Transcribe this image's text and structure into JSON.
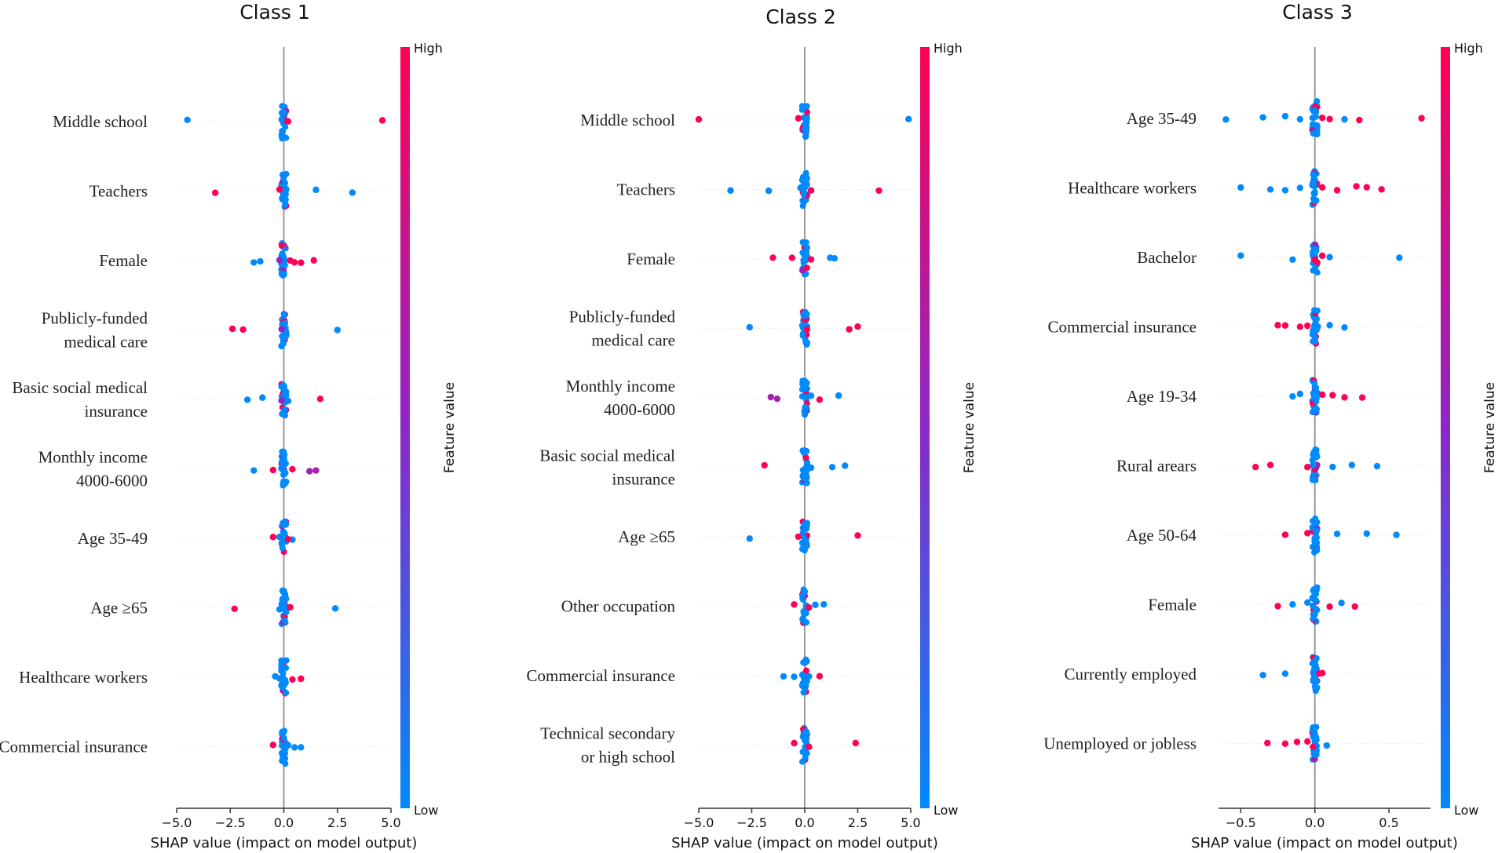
{
  "chart_data": [
    {
      "type": "scatter",
      "title": "Class  1",
      "xlabel": "SHAP value (impact on model output)",
      "xlim": [
        -5.0,
        5.0
      ],
      "xticks": [
        -5.0,
        -2.5,
        0.0,
        2.5,
        5.0
      ],
      "xtick_labels": [
        "−5.0",
        "−2.5",
        "0.0",
        "2.5",
        "5.0"
      ],
      "colorbar": {
        "high": "High",
        "low": "Low",
        "label": "Feature value"
      },
      "features": [
        {
          "label": [
            "Middle school"
          ],
          "points": [
            [
              -4.5,
              0.0
            ],
            [
              4.6,
              1.0
            ],
            [
              0.2,
              1.0
            ],
            [
              0.0,
              1.0
            ],
            [
              -0.1,
              0.0
            ]
          ]
        },
        {
          "label": [
            "Teachers"
          ],
          "points": [
            [
              -3.2,
              1.0
            ],
            [
              1.5,
              0.0
            ],
            [
              3.2,
              0.0
            ],
            [
              -0.2,
              1.0
            ],
            [
              0.1,
              0.0
            ]
          ]
        },
        {
          "label": [
            "Female"
          ],
          "points": [
            [
              -1.4,
              0.0
            ],
            [
              -1.1,
              0.0
            ],
            [
              1.4,
              1.0
            ],
            [
              0.8,
              1.0
            ],
            [
              0.5,
              1.0
            ],
            [
              -0.2,
              0.5
            ],
            [
              0.3,
              1.0
            ]
          ]
        },
        {
          "label": [
            "Publicly-funded",
            "medical care"
          ],
          "points": [
            [
              -2.4,
              1.0
            ],
            [
              -1.9,
              1.0
            ],
            [
              2.5,
              0.0
            ],
            [
              -0.1,
              0.5
            ]
          ]
        },
        {
          "label": [
            "Basic social medical",
            "insurance"
          ],
          "points": [
            [
              -1.7,
              0.0
            ],
            [
              -1.0,
              0.0
            ],
            [
              1.7,
              1.0
            ],
            [
              0.2,
              0.0
            ],
            [
              -0.1,
              0.5
            ]
          ]
        },
        {
          "label": [
            "Monthly income",
            "4000-6000"
          ],
          "points": [
            [
              -1.4,
              0.0
            ],
            [
              1.2,
              0.6
            ],
            [
              1.5,
              0.6
            ],
            [
              -0.5,
              1.0
            ],
            [
              0.4,
              1.0
            ]
          ]
        },
        {
          "label": [
            "Age 35-49"
          ],
          "points": [
            [
              -0.5,
              1.0
            ],
            [
              0.4,
              0.0
            ],
            [
              0.2,
              1.0
            ],
            [
              -0.2,
              0.0
            ]
          ]
        },
        {
          "label": [
            "Age ≥65"
          ],
          "points": [
            [
              -2.3,
              1.0
            ],
            [
              2.4,
              0.0
            ],
            [
              0.3,
              1.0
            ],
            [
              -0.2,
              0.0
            ]
          ]
        },
        {
          "label": [
            "Healthcare workers"
          ],
          "points": [
            [
              -0.4,
              0.0
            ],
            [
              0.8,
              1.0
            ],
            [
              0.4,
              1.0
            ],
            [
              -0.2,
              0.0
            ]
          ]
        },
        {
          "label": [
            "Commercial insurance"
          ],
          "points": [
            [
              -0.5,
              1.0
            ],
            [
              0.8,
              0.0
            ],
            [
              0.5,
              0.0
            ],
            [
              0.2,
              0.0
            ]
          ]
        }
      ]
    },
    {
      "type": "scatter",
      "title": "Class  2",
      "xlabel": "SHAP value (impact on model output)",
      "xlim": [
        -5.0,
        5.0
      ],
      "xticks": [
        -5.0,
        -2.5,
        0.0,
        2.5,
        5.0
      ],
      "xtick_labels": [
        "−5.0",
        "−2.5",
        "0.0",
        "2.5",
        "5.0"
      ],
      "colorbar": {
        "high": "High",
        "low": "Low",
        "label": "Feature value"
      },
      "features": [
        {
          "label": [
            "Middle school"
          ],
          "points": [
            [
              -5.0,
              1.0
            ],
            [
              4.9,
              0.0
            ],
            [
              -0.3,
              1.0
            ],
            [
              0.1,
              0.0
            ]
          ]
        },
        {
          "label": [
            "Teachers"
          ],
          "points": [
            [
              -3.5,
              0.0
            ],
            [
              -1.7,
              0.0
            ],
            [
              3.5,
              1.0
            ],
            [
              0.3,
              1.0
            ],
            [
              -0.2,
              0.0
            ]
          ]
        },
        {
          "label": [
            "Female"
          ],
          "points": [
            [
              -1.5,
              1.0
            ],
            [
              1.2,
              0.0
            ],
            [
              1.4,
              0.0
            ],
            [
              -0.6,
              1.0
            ],
            [
              0.3,
              1.0
            ]
          ]
        },
        {
          "label": [
            "Publicly-funded",
            "medical care"
          ],
          "points": [
            [
              -2.6,
              0.0
            ],
            [
              2.1,
              1.0
            ],
            [
              2.5,
              1.0
            ],
            [
              0.1,
              1.0
            ]
          ]
        },
        {
          "label": [
            "Monthly income",
            "4000-6000"
          ],
          "points": [
            [
              -1.6,
              0.6
            ],
            [
              -1.3,
              0.6
            ],
            [
              1.6,
              0.0
            ],
            [
              0.7,
              1.0
            ],
            [
              0.3,
              0.0
            ]
          ]
        },
        {
          "label": [
            "Basic social medical",
            "insurance"
          ],
          "points": [
            [
              -1.9,
              1.0
            ],
            [
              1.3,
              0.0
            ],
            [
              1.9,
              0.0
            ],
            [
              0.3,
              0.0
            ]
          ]
        },
        {
          "label": [
            "Age ≥65"
          ],
          "points": [
            [
              -2.6,
              0.0
            ],
            [
              2.5,
              1.0
            ],
            [
              -0.3,
              1.0
            ]
          ]
        },
        {
          "label": [
            "Other occupation"
          ],
          "points": [
            [
              -0.5,
              1.0
            ],
            [
              0.9,
              0.0
            ],
            [
              0.5,
              0.0
            ],
            [
              0.2,
              1.0
            ]
          ]
        },
        {
          "label": [
            "Commercial insurance"
          ],
          "points": [
            [
              -1.0,
              0.0
            ],
            [
              0.7,
              1.0
            ],
            [
              -0.5,
              0.0
            ],
            [
              0.2,
              0.0
            ]
          ]
        },
        {
          "label": [
            "Technical secondary",
            "or high school"
          ],
          "points": [
            [
              -0.5,
              1.0
            ],
            [
              2.4,
              1.0
            ],
            [
              0.2,
              1.0
            ]
          ]
        }
      ]
    },
    {
      "type": "scatter",
      "title": "Class  3",
      "xlabel": "SHAP value (impact on model output)",
      "xlim": [
        -0.65,
        0.78
      ],
      "xticks": [
        -0.5,
        0.0,
        0.5
      ],
      "xtick_labels": [
        "−0.5",
        "0.0",
        "0.5"
      ],
      "colorbar": {
        "high": "High",
        "low": "Low",
        "label": "Feature value"
      },
      "features": [
        {
          "label": [
            "Age 35-49"
          ],
          "points": [
            [
              -0.6,
              0.0
            ],
            [
              0.72,
              1.0
            ],
            [
              -0.35,
              0.0
            ],
            [
              -0.2,
              0.0
            ],
            [
              0.3,
              1.0
            ],
            [
              0.2,
              0.0
            ],
            [
              0.1,
              1.0
            ],
            [
              -0.1,
              0.0
            ],
            [
              0.05,
              1.0
            ]
          ]
        },
        {
          "label": [
            "Healthcare workers"
          ],
          "points": [
            [
              -0.5,
              0.0
            ],
            [
              -0.3,
              0.0
            ],
            [
              -0.2,
              0.0
            ],
            [
              0.45,
              1.0
            ],
            [
              0.35,
              1.0
            ],
            [
              0.28,
              1.0
            ],
            [
              0.15,
              1.0
            ],
            [
              -0.1,
              0.0
            ],
            [
              0.05,
              1.0
            ]
          ]
        },
        {
          "label": [
            "Bachelor"
          ],
          "points": [
            [
              -0.5,
              0.0
            ],
            [
              0.57,
              0.0
            ],
            [
              -0.15,
              0.0
            ],
            [
              0.1,
              0.0
            ],
            [
              0.0,
              1.0
            ],
            [
              0.05,
              1.0
            ]
          ]
        },
        {
          "label": [
            "Commercial insurance"
          ],
          "points": [
            [
              -0.25,
              1.0
            ],
            [
              -0.2,
              1.0
            ],
            [
              -0.1,
              1.0
            ],
            [
              0.1,
              0.0
            ],
            [
              0.2,
              0.0
            ],
            [
              -0.05,
              1.0
            ],
            [
              0.02,
              0.0
            ]
          ]
        },
        {
          "label": [
            "Age 19-34"
          ],
          "points": [
            [
              -0.15,
              0.0
            ],
            [
              0.32,
              1.0
            ],
            [
              0.2,
              1.0
            ],
            [
              0.12,
              1.0
            ],
            [
              -0.1,
              0.0
            ],
            [
              0.05,
              1.0
            ]
          ]
        },
        {
          "label": [
            "Rural arears"
          ],
          "points": [
            [
              -0.4,
              1.0
            ],
            [
              -0.3,
              1.0
            ],
            [
              0.42,
              0.0
            ],
            [
              0.25,
              0.0
            ],
            [
              0.12,
              0.0
            ],
            [
              -0.05,
              1.0
            ]
          ]
        },
        {
          "label": [
            "Age 50-64"
          ],
          "points": [
            [
              -0.2,
              1.0
            ],
            [
              0.35,
              0.0
            ],
            [
              0.55,
              0.0
            ],
            [
              0.15,
              0.0
            ],
            [
              -0.05,
              1.0
            ]
          ]
        },
        {
          "label": [
            "Female"
          ],
          "points": [
            [
              -0.25,
              1.0
            ],
            [
              0.27,
              1.0
            ],
            [
              0.18,
              0.0
            ],
            [
              -0.15,
              0.0
            ],
            [
              0.1,
              1.0
            ],
            [
              -0.05,
              0.0
            ]
          ]
        },
        {
          "label": [
            "Currently employed"
          ],
          "points": [
            [
              -0.35,
              0.0
            ],
            [
              -0.2,
              0.0
            ],
            [
              0.03,
              1.0
            ],
            [
              0.05,
              1.0
            ]
          ]
        },
        {
          "label": [
            "Unemployed or jobless"
          ],
          "points": [
            [
              -0.32,
              1.0
            ],
            [
              -0.2,
              1.0
            ],
            [
              -0.12,
              1.0
            ],
            [
              0.08,
              0.0
            ],
            [
              -0.05,
              1.0
            ]
          ]
        }
      ]
    }
  ]
}
